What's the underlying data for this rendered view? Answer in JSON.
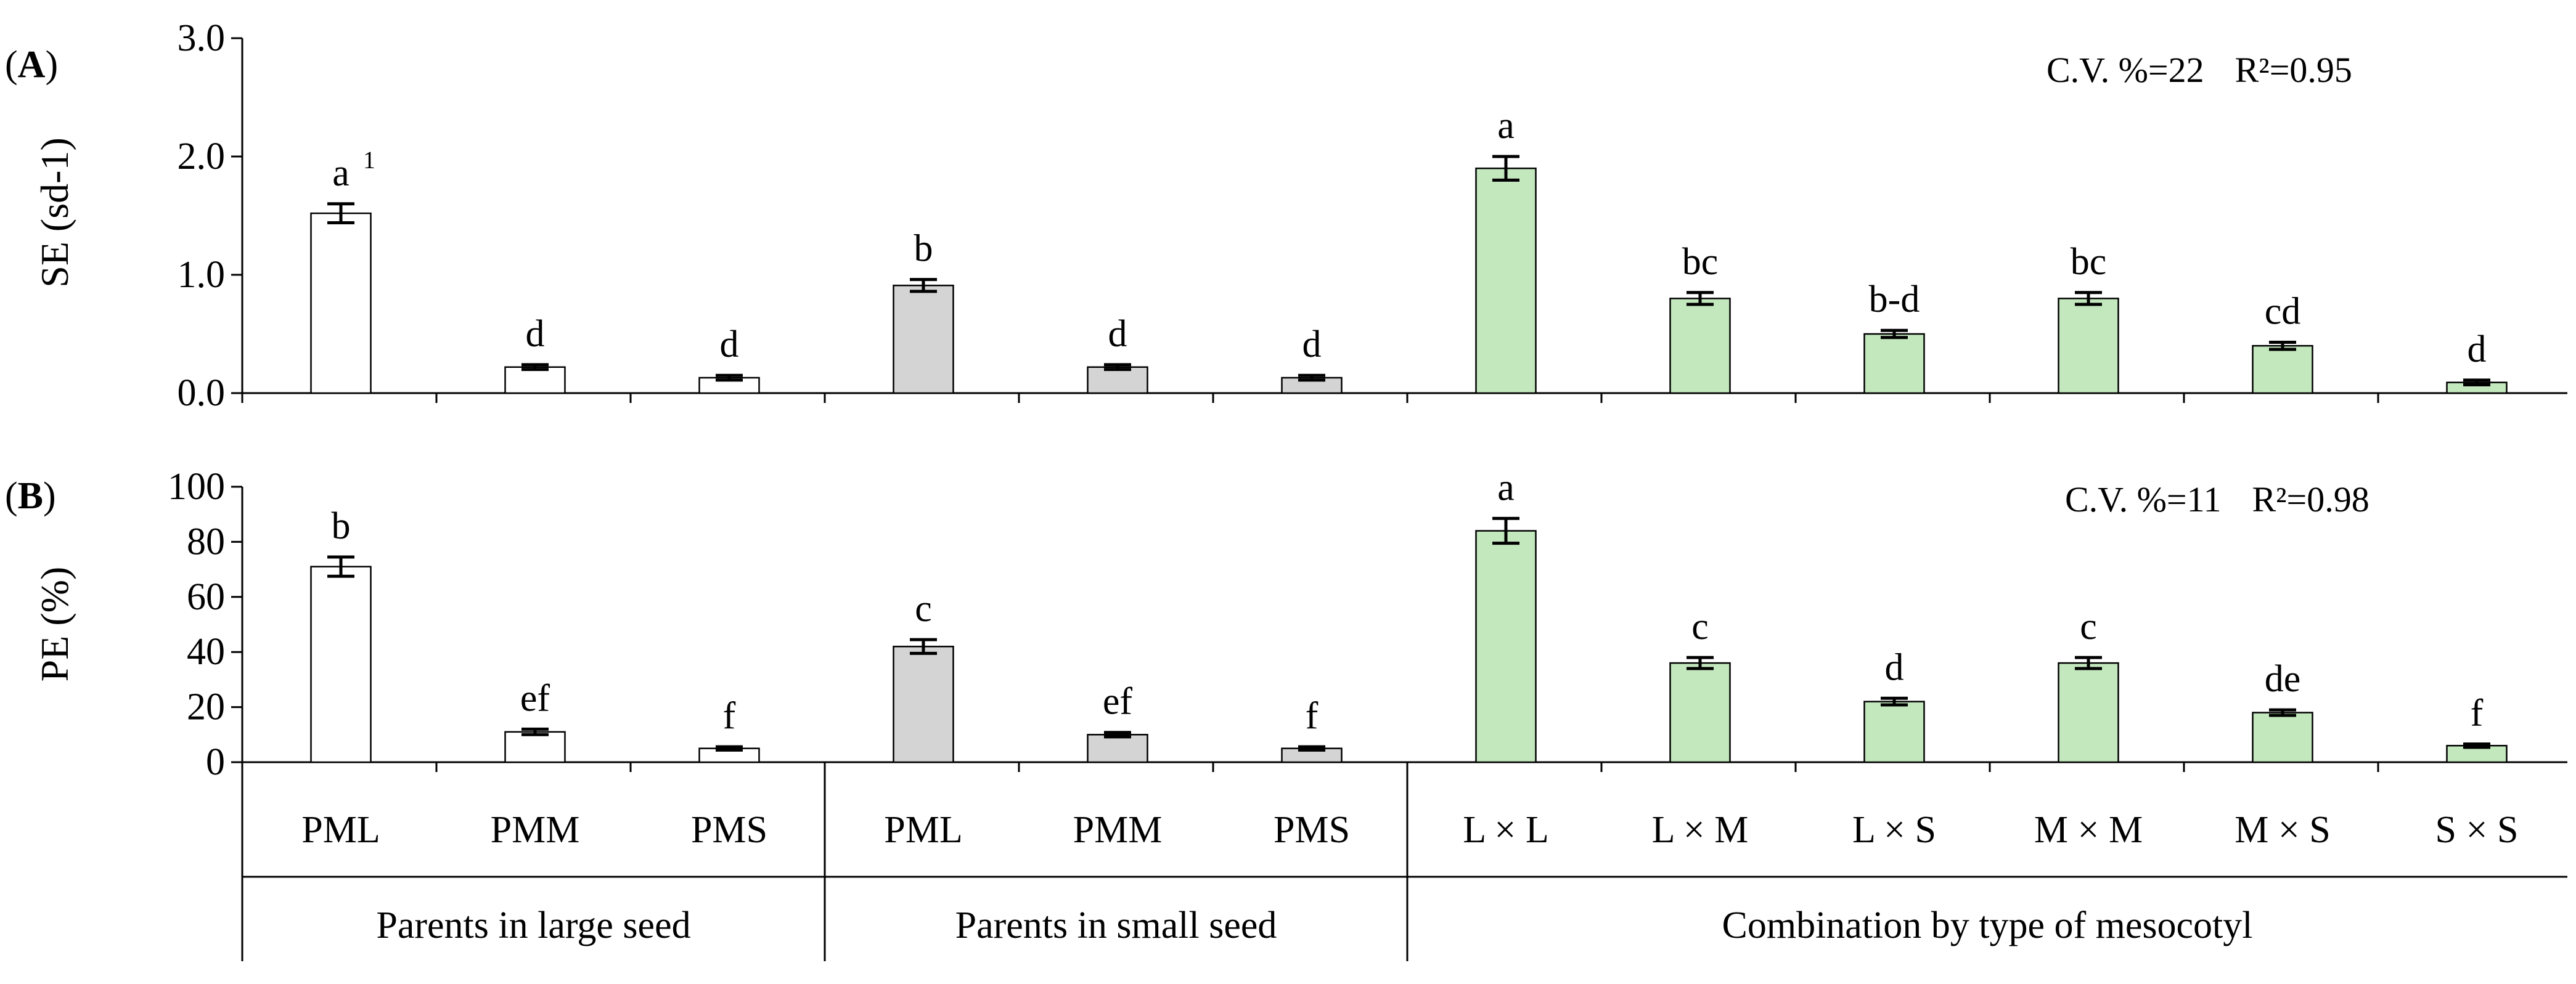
{
  "chart_data": [
    {
      "panel": "(A)",
      "panel_letter": "A",
      "type": "bar",
      "ylabel": "SE (sd-1)",
      "ylim": [
        0,
        3.0
      ],
      "yticks": [
        0.0,
        1.0,
        2.0,
        3.0
      ],
      "ytick_labels": [
        "0.0",
        "1.0",
        "2.0",
        "3.0"
      ],
      "stats": "C.V. %=22   R²=0.95",
      "stats_cv": "C.V. %=22",
      "stats_r2": "R²=0.95",
      "categories": [
        "PML",
        "PMM",
        "PMS",
        "PML",
        "PMM",
        "PMS",
        "L × L",
        "L × M",
        "L × S",
        "M × M",
        "M × S",
        "S × S"
      ],
      "values": [
        1.52,
        0.22,
        0.13,
        0.91,
        0.22,
        0.13,
        1.9,
        0.8,
        0.5,
        0.8,
        0.4,
        0.09
      ],
      "errors": [
        0.08,
        0.02,
        0.02,
        0.05,
        0.02,
        0.02,
        0.1,
        0.05,
        0.03,
        0.05,
        0.03,
        0.02
      ],
      "letters": [
        "a",
        "d",
        "d",
        "b",
        "d",
        "d",
        "a",
        "bc",
        "b-d",
        "bc",
        "cd",
        "d"
      ],
      "footnote_mark": "1"
    },
    {
      "panel": "(B)",
      "panel_letter": "B",
      "type": "bar",
      "ylabel": "PE (%)",
      "ylim": [
        0,
        100
      ],
      "yticks": [
        0,
        20,
        40,
        60,
        80,
        100
      ],
      "ytick_labels": [
        "0",
        "20",
        "40",
        "60",
        "80",
        "100"
      ],
      "stats": "C.V. %=11   R²=0.98",
      "stats_cv": "C.V. %=11",
      "stats_r2": "R²=0.98",
      "categories": [
        "PML",
        "PMM",
        "PMS",
        "PML",
        "PMM",
        "PMS",
        "L × L",
        "L × M",
        "L × S",
        "M × M",
        "M × S",
        "S × S"
      ],
      "values": [
        71,
        11,
        5,
        42,
        10,
        5,
        84,
        36,
        22,
        36,
        18,
        6
      ],
      "errors": [
        3.5,
        1.0,
        0.6,
        2.5,
        0.8,
        0.6,
        4.5,
        2.0,
        1.2,
        2.0,
        1.0,
        0.6
      ],
      "letters": [
        "b",
        "ef",
        "f",
        "c",
        "ef",
        "f",
        "a",
        "c",
        "d",
        "c",
        "de",
        "f"
      ]
    }
  ],
  "groups": [
    {
      "label": "Parents in large seed",
      "size": 3,
      "fill": "#ffffff"
    },
    {
      "label": "Parents in small seed",
      "size": 3,
      "fill": "#d4d4d4"
    },
    {
      "label": "Combination by type of mesocotyl",
      "size": 6,
      "fill": "#c3e8bd"
    }
  ],
  "colors": {
    "axis": "#000000",
    "bar_stroke": "#000000"
  }
}
